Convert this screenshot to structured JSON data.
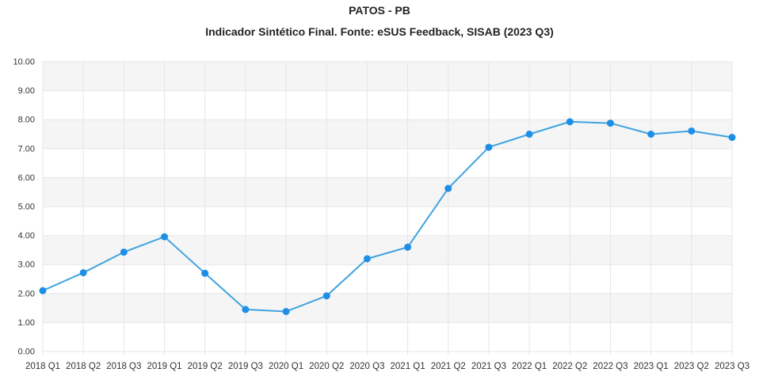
{
  "chart_data": {
    "type": "line",
    "title": "PATOS - PB",
    "subtitle": "Indicador Sintético Final. Fonte: eSUS Feedback, SISAB (2023 Q3)",
    "xlabel": "",
    "ylabel": "",
    "ylim": [
      0,
      10
    ],
    "yticks": [
      "0.00",
      "1.00",
      "2.00",
      "3.00",
      "4.00",
      "5.00",
      "6.00",
      "7.00",
      "8.00",
      "9.00",
      "10.00"
    ],
    "grid": true,
    "legend": "none",
    "categories": [
      "2018 Q1",
      "2018 Q2",
      "2018 Q3",
      "2019 Q1",
      "2019 Q2",
      "2019 Q3",
      "2020 Q1",
      "2020 Q2",
      "2020 Q3",
      "2021 Q1",
      "2021 Q2",
      "2021 Q3",
      "2022 Q1",
      "2022 Q2",
      "2022 Q3",
      "2023 Q1",
      "2023 Q2",
      "2023 Q3"
    ],
    "series": [
      {
        "values": [
          2.1,
          2.72,
          3.43,
          3.96,
          2.7,
          1.45,
          1.38,
          1.92,
          3.2,
          3.6,
          5.63,
          7.05,
          7.5,
          7.93,
          7.88,
          7.5,
          7.61,
          7.39
        ]
      }
    ],
    "colors": {
      "line": "#3fa3e0",
      "marker": "#1f8fe5",
      "band": "#f5f5f5",
      "grid": "#e6e6e6",
      "tick_text": "#333333"
    }
  }
}
